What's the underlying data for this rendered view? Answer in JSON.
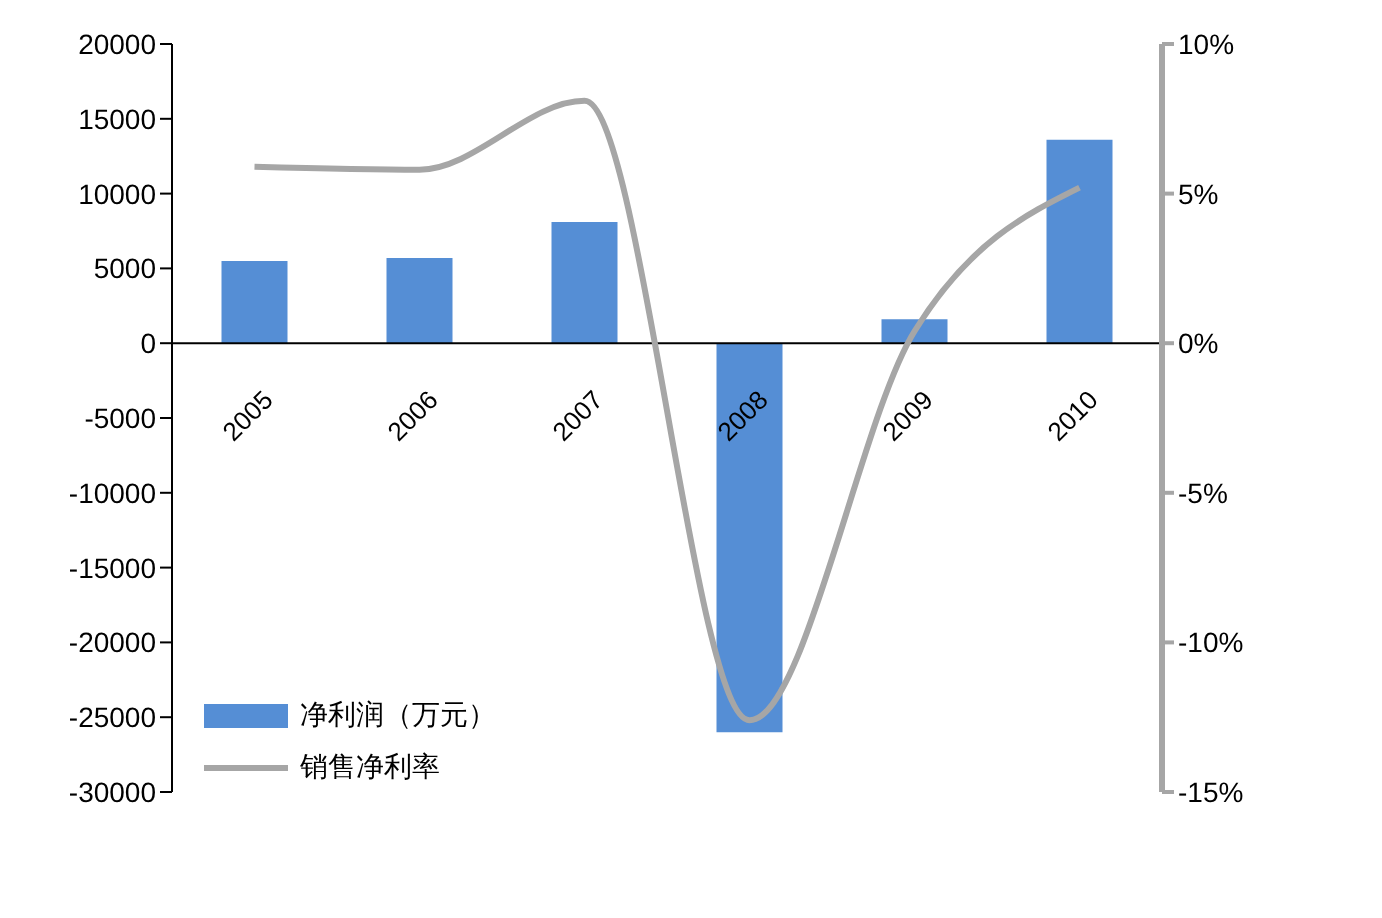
{
  "chart_data": {
    "type": "bar",
    "categories": [
      "2005",
      "2006",
      "2007",
      "2008",
      "2009",
      "2010"
    ],
    "series": [
      {
        "name": "净利润（万元）",
        "color": "#558ed5",
        "values": [
          5500,
          5700,
          8100,
          -26000,
          1600,
          13600
        ]
      },
      {
        "name": "销售净利率",
        "type": "line",
        "axis": "y2",
        "color": "#a6a6a6",
        "values": [
          5.9,
          5.8,
          8.1,
          -12.6,
          0.4,
          5.2
        ]
      }
    ],
    "ylim": [
      -30000,
      20000
    ],
    "yticks": [
      -30000,
      -25000,
      -20000,
      -15000,
      -10000,
      -5000,
      0,
      5000,
      10000,
      15000,
      20000
    ],
    "y2lim": [
      -15,
      10
    ],
    "y2ticks": [
      {
        "value": -15,
        "label": "-15%"
      },
      {
        "value": -10,
        "label": "-10%"
      },
      {
        "value": -5,
        "label": "-5%"
      },
      {
        "value": 0,
        "label": "0%"
      },
      {
        "value": 5,
        "label": "5%"
      },
      {
        "value": 10,
        "label": "10%"
      }
    ],
    "legend": "bottom left",
    "grid": false,
    "marker": "none"
  }
}
